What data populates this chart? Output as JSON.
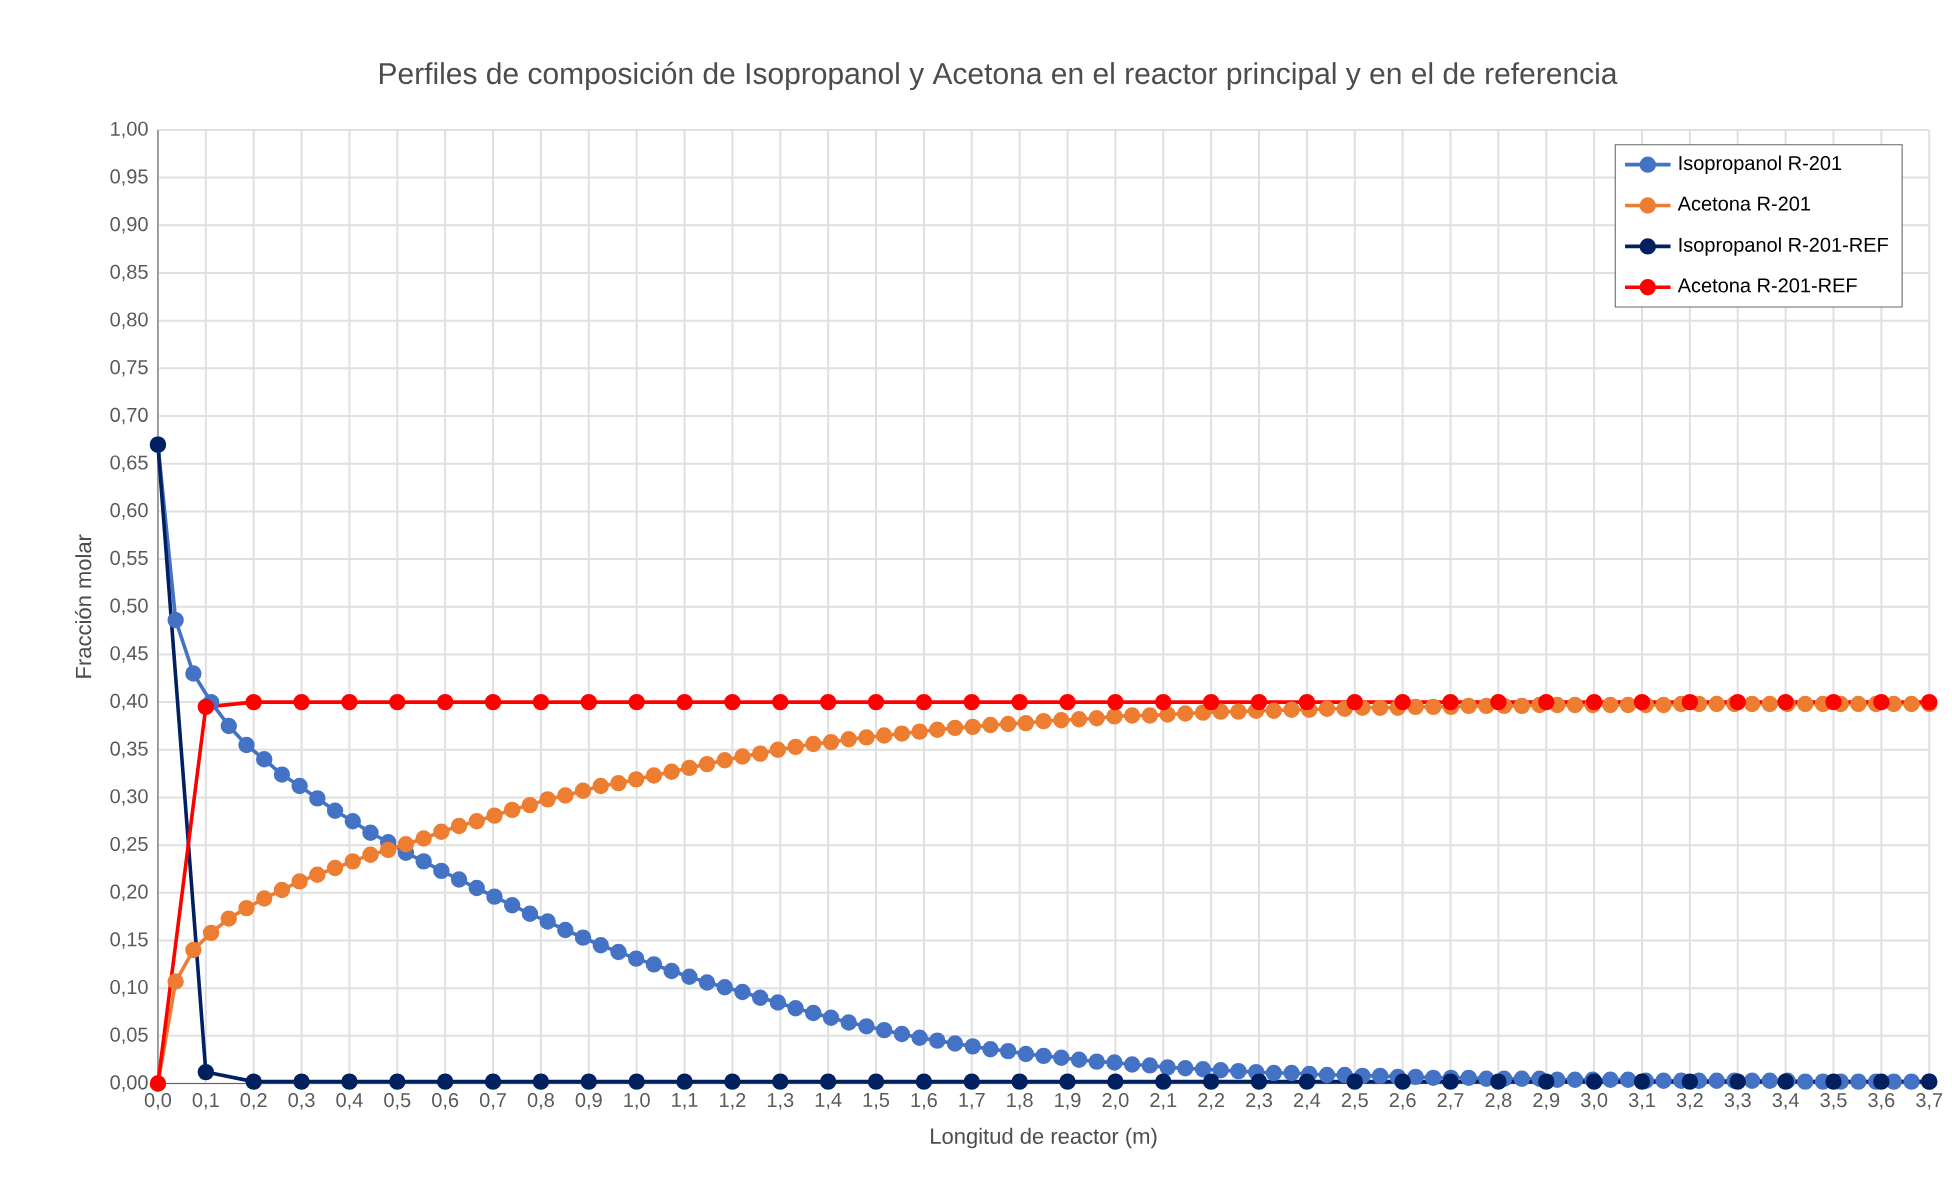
{
  "chart_data": {
    "type": "line",
    "title": "Perfiles de composición de Isopropanol y Acetona en el reactor principal y en el de referencia",
    "xlabel": "Longitud de reactor (m)",
    "ylabel": "Fracción molar",
    "xlim": [
      0,
      3.7
    ],
    "ylim": [
      0,
      1
    ],
    "xticks": [
      {
        "value": 0,
        "label": "0,0"
      },
      {
        "value": 0.1,
        "label": "0,1"
      },
      {
        "value": 0.2,
        "label": "0,2"
      },
      {
        "value": 0.3,
        "label": "0,3"
      },
      {
        "value": 0.4,
        "label": "0,4"
      },
      {
        "value": 0.5,
        "label": "0,5"
      },
      {
        "value": 0.6,
        "label": "0,6"
      },
      {
        "value": 0.7,
        "label": "0,7"
      },
      {
        "value": 0.8,
        "label": "0,8"
      },
      {
        "value": 0.9,
        "label": "0,9"
      },
      {
        "value": 1.0,
        "label": "1,0"
      },
      {
        "value": 1.1,
        "label": "1,1"
      },
      {
        "value": 1.2,
        "label": "1,2"
      },
      {
        "value": 1.3,
        "label": "1,3"
      },
      {
        "value": 1.4,
        "label": "1,4"
      },
      {
        "value": 1.5,
        "label": "1,5"
      },
      {
        "value": 1.6,
        "label": "1,6"
      },
      {
        "value": 1.7,
        "label": "1,7"
      },
      {
        "value": 1.8,
        "label": "1,8"
      },
      {
        "value": 1.9,
        "label": "1,9"
      },
      {
        "value": 2.0,
        "label": "2,0"
      },
      {
        "value": 2.1,
        "label": "2,1"
      },
      {
        "value": 2.2,
        "label": "2,2"
      },
      {
        "value": 2.3,
        "label": "2,3"
      },
      {
        "value": 2.4,
        "label": "2,4"
      },
      {
        "value": 2.5,
        "label": "2,5"
      },
      {
        "value": 2.6,
        "label": "2,6"
      },
      {
        "value": 2.7,
        "label": "2,7"
      },
      {
        "value": 2.8,
        "label": "2,8"
      },
      {
        "value": 2.9,
        "label": "2,9"
      },
      {
        "value": 3.0,
        "label": "3,0"
      },
      {
        "value": 3.1,
        "label": "3,1"
      },
      {
        "value": 3.2,
        "label": "3,2"
      },
      {
        "value": 3.3,
        "label": "3,3"
      },
      {
        "value": 3.4,
        "label": "3,4"
      },
      {
        "value": 3.5,
        "label": "3,5"
      },
      {
        "value": 3.6,
        "label": "3,6"
      },
      {
        "value": 3.7,
        "label": "3,7"
      }
    ],
    "yticks": [
      {
        "value": 0,
        "label": "0,00"
      },
      {
        "value": 0.05,
        "label": "0,05"
      },
      {
        "value": 0.1,
        "label": "0,10"
      },
      {
        "value": 0.15,
        "label": "0,15"
      },
      {
        "value": 0.2,
        "label": "0,20"
      },
      {
        "value": 0.25,
        "label": "0,25"
      },
      {
        "value": 0.3,
        "label": "0,30"
      },
      {
        "value": 0.35,
        "label": "0,35"
      },
      {
        "value": 0.4,
        "label": "0,40"
      },
      {
        "value": 0.45,
        "label": "0,45"
      },
      {
        "value": 0.5,
        "label": "0,50"
      },
      {
        "value": 0.55,
        "label": "0,55"
      },
      {
        "value": 0.6,
        "label": "0,60"
      },
      {
        "value": 0.65,
        "label": "0,65"
      },
      {
        "value": 0.7,
        "label": "0,70"
      },
      {
        "value": 0.75,
        "label": "0,75"
      },
      {
        "value": 0.8,
        "label": "0,80"
      },
      {
        "value": 0.85,
        "label": "0,85"
      },
      {
        "value": 0.9,
        "label": "0,90"
      },
      {
        "value": 0.95,
        "label": "0,95"
      },
      {
        "value": 1.0,
        "label": "1,00"
      }
    ],
    "grid": true,
    "legend": "top right",
    "marker": "circle",
    "line_style": "solid",
    "series": [
      {
        "name": "Isopropanol R-201",
        "color": "#4472c4",
        "x": [
          0,
          0.037,
          0.074,
          0.111,
          0.148,
          0.185,
          0.222,
          0.259,
          0.296,
          0.333,
          0.37,
          0.407,
          0.444,
          0.481,
          0.518,
          0.555,
          0.592,
          0.629,
          0.666,
          0.703,
          0.74,
          0.777,
          0.814,
          0.851,
          0.888,
          0.925,
          0.962,
          0.999,
          1.036,
          1.073,
          1.11,
          1.147,
          1.184,
          1.221,
          1.258,
          1.295,
          1.332,
          1.369,
          1.406,
          1.443,
          1.48,
          1.517,
          1.554,
          1.591,
          1.628,
          1.665,
          1.702,
          1.739,
          1.776,
          1.813,
          1.85,
          1.887,
          1.924,
          1.961,
          1.998,
          2.035,
          2.072,
          2.109,
          2.146,
          2.183,
          2.22,
          2.257,
          2.294,
          2.331,
          2.368,
          2.405,
          2.442,
          2.479,
          2.516,
          2.553,
          2.59,
          2.627,
          2.664,
          2.701,
          2.738,
          2.775,
          2.812,
          2.849,
          2.886,
          2.923,
          2.96,
          2.997,
          3.034,
          3.071,
          3.108,
          3.145,
          3.182,
          3.219,
          3.256,
          3.293,
          3.33,
          3.367,
          3.404,
          3.441,
          3.478,
          3.515,
          3.552,
          3.589,
          3.626,
          3.663,
          3.7
        ],
        "values": [
          0.67,
          0.486,
          0.43,
          0.4,
          0.375,
          0.355,
          0.34,
          0.324,
          0.312,
          0.299,
          0.286,
          0.275,
          0.263,
          0.253,
          0.242,
          0.233,
          0.223,
          0.214,
          0.205,
          0.196,
          0.187,
          0.178,
          0.17,
          0.161,
          0.153,
          0.145,
          0.138,
          0.131,
          0.125,
          0.118,
          0.112,
          0.106,
          0.101,
          0.096,
          0.09,
          0.085,
          0.079,
          0.074,
          0.069,
          0.064,
          0.06,
          0.056,
          0.052,
          0.048,
          0.045,
          0.042,
          0.039,
          0.036,
          0.034,
          0.031,
          0.029,
          0.027,
          0.025,
          0.023,
          0.022,
          0.02,
          0.019,
          0.017,
          0.016,
          0.015,
          0.014,
          0.013,
          0.012,
          0.011,
          0.011,
          0.01,
          0.009,
          0.009,
          0.008,
          0.008,
          0.007,
          0.007,
          0.006,
          0.006,
          0.006,
          0.005,
          0.005,
          0.005,
          0.005,
          0.004,
          0.004,
          0.004,
          0.004,
          0.004,
          0.003,
          0.003,
          0.003,
          0.003,
          0.003,
          0.003,
          0.003,
          0.003,
          0.003,
          0.002,
          0.002,
          0.002,
          0.002,
          0.002,
          0.002,
          0.002,
          0.002
        ]
      },
      {
        "name": "Acetona R-201",
        "color": "#ed7d31",
        "x": [
          0,
          0.037,
          0.074,
          0.111,
          0.148,
          0.185,
          0.222,
          0.259,
          0.296,
          0.333,
          0.37,
          0.407,
          0.444,
          0.481,
          0.518,
          0.555,
          0.592,
          0.629,
          0.666,
          0.703,
          0.74,
          0.777,
          0.814,
          0.851,
          0.888,
          0.925,
          0.962,
          0.999,
          1.036,
          1.073,
          1.11,
          1.147,
          1.184,
          1.221,
          1.258,
          1.295,
          1.332,
          1.369,
          1.406,
          1.443,
          1.48,
          1.517,
          1.554,
          1.591,
          1.628,
          1.665,
          1.702,
          1.739,
          1.776,
          1.813,
          1.85,
          1.887,
          1.924,
          1.961,
          1.998,
          2.035,
          2.072,
          2.109,
          2.146,
          2.183,
          2.22,
          2.257,
          2.294,
          2.331,
          2.368,
          2.405,
          2.442,
          2.479,
          2.516,
          2.553,
          2.59,
          2.627,
          2.664,
          2.701,
          2.738,
          2.775,
          2.812,
          2.849,
          2.886,
          2.923,
          2.96,
          2.997,
          3.034,
          3.071,
          3.108,
          3.145,
          3.182,
          3.219,
          3.256,
          3.293,
          3.33,
          3.367,
          3.404,
          3.441,
          3.478,
          3.515,
          3.552,
          3.589,
          3.626,
          3.663,
          3.7
        ],
        "values": [
          0,
          0.107,
          0.14,
          0.158,
          0.173,
          0.184,
          0.194,
          0.203,
          0.212,
          0.219,
          0.226,
          0.233,
          0.24,
          0.245,
          0.251,
          0.257,
          0.264,
          0.27,
          0.275,
          0.281,
          0.287,
          0.292,
          0.298,
          0.302,
          0.307,
          0.312,
          0.315,
          0.319,
          0.323,
          0.327,
          0.331,
          0.335,
          0.339,
          0.343,
          0.346,
          0.35,
          0.353,
          0.356,
          0.358,
          0.361,
          0.363,
          0.365,
          0.367,
          0.369,
          0.371,
          0.373,
          0.374,
          0.376,
          0.377,
          0.378,
          0.38,
          0.381,
          0.382,
          0.383,
          0.385,
          0.386,
          0.386,
          0.387,
          0.388,
          0.389,
          0.39,
          0.39,
          0.391,
          0.391,
          0.392,
          0.392,
          0.393,
          0.393,
          0.394,
          0.394,
          0.394,
          0.395,
          0.395,
          0.395,
          0.396,
          0.396,
          0.396,
          0.396,
          0.397,
          0.397,
          0.397,
          0.397,
          0.397,
          0.397,
          0.397,
          0.397,
          0.398,
          0.398,
          0.398,
          0.398,
          0.398,
          0.398,
          0.398,
          0.398,
          0.398,
          0.398,
          0.398,
          0.398,
          0.398,
          0.398,
          0.398
        ]
      },
      {
        "name": "Isopropanol R-201-REF",
        "color": "#002060",
        "x": [
          0,
          0.1,
          0.2,
          0.3,
          0.4,
          0.5,
          0.6,
          0.7,
          0.8,
          0.9,
          1.0,
          1.1,
          1.2,
          1.3,
          1.4,
          1.5,
          1.6,
          1.7,
          1.8,
          1.9,
          2.0,
          2.1,
          2.2,
          2.3,
          2.4,
          2.5,
          2.6,
          2.7,
          2.8,
          2.9,
          3.0,
          3.1,
          3.2,
          3.3,
          3.4,
          3.5,
          3.6,
          3.7
        ],
        "values": [
          0.67,
          0.012,
          0.002,
          0.002,
          0.002,
          0.002,
          0.002,
          0.002,
          0.002,
          0.002,
          0.002,
          0.002,
          0.002,
          0.002,
          0.002,
          0.002,
          0.002,
          0.002,
          0.002,
          0.002,
          0.002,
          0.002,
          0.002,
          0.002,
          0.002,
          0.002,
          0.002,
          0.002,
          0.002,
          0.002,
          0.002,
          0.002,
          0.002,
          0.002,
          0.002,
          0.002,
          0.002,
          0.002
        ]
      },
      {
        "name": "Acetona R-201-REF",
        "color": "#ff0000",
        "x": [
          0,
          0.1,
          0.2,
          0.3,
          0.4,
          0.5,
          0.6,
          0.7,
          0.8,
          0.9,
          1.0,
          1.1,
          1.2,
          1.3,
          1.4,
          1.5,
          1.6,
          1.7,
          1.8,
          1.9,
          2.0,
          2.1,
          2.2,
          2.3,
          2.4,
          2.5,
          2.6,
          2.7,
          2.8,
          2.9,
          3.0,
          3.1,
          3.2,
          3.3,
          3.4,
          3.5,
          3.6,
          3.7
        ],
        "values": [
          0,
          0.395,
          0.4,
          0.4,
          0.4,
          0.4,
          0.4,
          0.4,
          0.4,
          0.4,
          0.4,
          0.4,
          0.4,
          0.4,
          0.4,
          0.4,
          0.4,
          0.4,
          0.4,
          0.4,
          0.4,
          0.4,
          0.4,
          0.4,
          0.4,
          0.4,
          0.4,
          0.4,
          0.4,
          0.4,
          0.4,
          0.4,
          0.4,
          0.4,
          0.4,
          0.4,
          0.4,
          0.4
        ]
      }
    ]
  }
}
